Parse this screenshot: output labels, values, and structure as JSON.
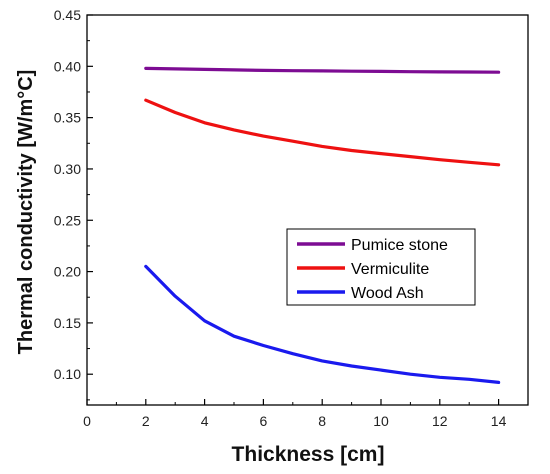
{
  "chart_data": {
    "type": "line",
    "title": "",
    "xlabel": "Thickness [cm]",
    "ylabel": "Thermal conductivity [W/m°C]",
    "xlim": [
      0,
      15
    ],
    "ylim": [
      0.07,
      0.45
    ],
    "xticks": [
      0,
      2,
      4,
      6,
      8,
      10,
      12,
      14
    ],
    "xtick_labels": [
      "0",
      "2",
      "4",
      "6",
      "8",
      "10",
      "12",
      "14"
    ],
    "yticks": [
      0.1,
      0.15,
      0.2,
      0.25,
      0.3,
      0.35,
      0.4,
      0.45
    ],
    "ytick_labels": [
      "0.10",
      "0.15",
      "0.20",
      "0.25",
      "0.30",
      "0.35",
      "0.40",
      "0.45"
    ],
    "grid": false,
    "legend_position": "center-right",
    "x": [
      2,
      3,
      4,
      5,
      6,
      7,
      8,
      9,
      10,
      11,
      12,
      13,
      14
    ],
    "series": [
      {
        "name": "Pumice stone",
        "color": "#7d0c93",
        "values": [
          0.398,
          0.3975,
          0.397,
          0.3965,
          0.396,
          0.3957,
          0.3955,
          0.3952,
          0.395,
          0.3948,
          0.3946,
          0.3945,
          0.3943
        ]
      },
      {
        "name": "Vermiculite",
        "color": "#ee1111",
        "values": [
          0.367,
          0.355,
          0.345,
          0.338,
          0.332,
          0.327,
          0.322,
          0.318,
          0.315,
          0.312,
          0.309,
          0.3065,
          0.304
        ]
      },
      {
        "name": "Wood Ash",
        "color": "#1a1aee",
        "values": [
          0.205,
          0.176,
          0.152,
          0.137,
          0.128,
          0.12,
          0.113,
          0.108,
          0.104,
          0.1,
          0.097,
          0.095,
          0.092
        ]
      }
    ]
  }
}
